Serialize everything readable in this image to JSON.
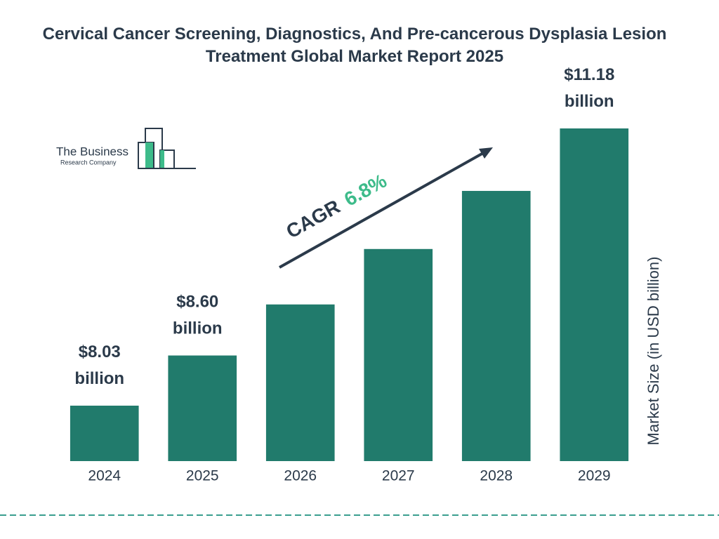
{
  "chart_data": {
    "type": "bar",
    "title": "Cervical Cancer Screening, Diagnostics, And Pre-cancerous Dysplasia Lesion Treatment Global Market Report 2025",
    "categories": [
      "2024",
      "2025",
      "2026",
      "2027",
      "2028",
      "2029"
    ],
    "values": [
      8.03,
      8.6,
      9.18,
      9.81,
      10.47,
      11.18
    ],
    "value_labels": [
      "$8.03 billion",
      "$8.60 billion",
      null,
      null,
      null,
      "$11.18 billion"
    ],
    "color": "#217b6c",
    "ylim": [
      7.4,
      11.18
    ],
    "y_label": "Market Size (in USD billion)",
    "annotation": "CAGR",
    "annotation_value": "6.8%",
    "logo": {
      "line1": "The Business",
      "line2": "Research Company"
    }
  }
}
